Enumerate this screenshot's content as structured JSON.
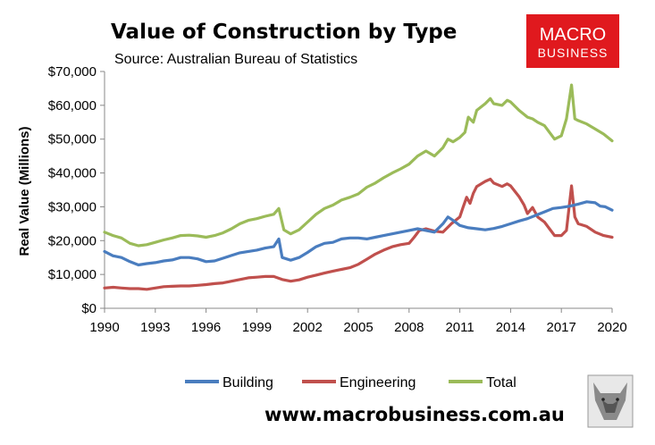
{
  "brand": {
    "line1": "MACRO",
    "line2": "BUSINESS",
    "bg_color": "#e0191e",
    "url": "www.macrobusiness.com.au"
  },
  "chart_data": {
    "type": "line",
    "title": "Value of Construction by Type",
    "subtitle": "Source: Australian Bureau of Statistics",
    "xlabel": "",
    "ylabel": "Real Value (Millions)",
    "xlim": [
      1990,
      2020
    ],
    "ylim": [
      0,
      70000
    ],
    "x_ticks": [
      "1990",
      "1993",
      "1996",
      "1999",
      "2002",
      "2005",
      "2008",
      "2011",
      "2014",
      "2017",
      "2020"
    ],
    "y_ticks": [
      "$0",
      "$10,000",
      "$20,000",
      "$30,000",
      "$40,000",
      "$50,000",
      "$60,000",
      "$70,000"
    ],
    "legend_position": "bottom",
    "series": [
      {
        "name": "Building",
        "color": "#4a7dbf",
        "points": [
          [
            1990,
            16800
          ],
          [
            1990.5,
            15500
          ],
          [
            1991,
            15000
          ],
          [
            1991.5,
            13800
          ],
          [
            1992,
            12800
          ],
          [
            1992.5,
            13200
          ],
          [
            1993,
            13500
          ],
          [
            1993.5,
            14000
          ],
          [
            1994,
            14300
          ],
          [
            1994.5,
            15000
          ],
          [
            1995,
            15000
          ],
          [
            1995.5,
            14600
          ],
          [
            1996,
            13800
          ],
          [
            1996.5,
            14000
          ],
          [
            1997,
            14800
          ],
          [
            1997.5,
            15600
          ],
          [
            1998,
            16400
          ],
          [
            1998.5,
            16800
          ],
          [
            1999,
            17200
          ],
          [
            1999.5,
            17800
          ],
          [
            2000,
            18200
          ],
          [
            2000.3,
            20500
          ],
          [
            2000.5,
            15000
          ],
          [
            2001,
            14200
          ],
          [
            2001.5,
            15000
          ],
          [
            2002,
            16500
          ],
          [
            2002.5,
            18200
          ],
          [
            2003,
            19200
          ],
          [
            2003.5,
            19500
          ],
          [
            2004,
            20500
          ],
          [
            2004.5,
            20800
          ],
          [
            2005,
            20800
          ],
          [
            2005.5,
            20500
          ],
          [
            2006,
            21000
          ],
          [
            2006.5,
            21500
          ],
          [
            2007,
            22000
          ],
          [
            2007.5,
            22500
          ],
          [
            2008,
            23000
          ],
          [
            2008.5,
            23500
          ],
          [
            2009,
            23000
          ],
          [
            2009.5,
            22500
          ],
          [
            2010,
            25000
          ],
          [
            2010.3,
            27000
          ],
          [
            2010.6,
            26000
          ],
          [
            2011,
            24500
          ],
          [
            2011.5,
            23800
          ],
          [
            2012,
            23500
          ],
          [
            2012.5,
            23200
          ],
          [
            2013,
            23600
          ],
          [
            2013.5,
            24200
          ],
          [
            2014,
            25000
          ],
          [
            2014.5,
            25800
          ],
          [
            2015,
            26500
          ],
          [
            2015.5,
            27500
          ],
          [
            2016,
            28500
          ],
          [
            2016.5,
            29500
          ],
          [
            2017,
            29800
          ],
          [
            2017.5,
            30200
          ],
          [
            2018,
            30800
          ],
          [
            2018.5,
            31500
          ],
          [
            2019,
            31200
          ],
          [
            2019.3,
            30200
          ],
          [
            2019.6,
            30000
          ],
          [
            2020,
            29000
          ]
        ]
      },
      {
        "name": "Engineering",
        "color": "#c0504d",
        "points": [
          [
            1990,
            6000
          ],
          [
            1990.5,
            6200
          ],
          [
            1991,
            6000
          ],
          [
            1991.5,
            5800
          ],
          [
            1992,
            5800
          ],
          [
            1992.5,
            5600
          ],
          [
            1993,
            6000
          ],
          [
            1993.5,
            6400
          ],
          [
            1994,
            6500
          ],
          [
            1994.5,
            6600
          ],
          [
            1995,
            6600
          ],
          [
            1995.5,
            6800
          ],
          [
            1996,
            7000
          ],
          [
            1996.5,
            7300
          ],
          [
            1997,
            7500
          ],
          [
            1997.5,
            8000
          ],
          [
            1998,
            8500
          ],
          [
            1998.5,
            9000
          ],
          [
            1999,
            9200
          ],
          [
            1999.5,
            9400
          ],
          [
            2000,
            9400
          ],
          [
            2000.5,
            8500
          ],
          [
            2001,
            8000
          ],
          [
            2001.5,
            8400
          ],
          [
            2002,
            9200
          ],
          [
            2002.5,
            9800
          ],
          [
            2003,
            10400
          ],
          [
            2003.5,
            11000
          ],
          [
            2004,
            11500
          ],
          [
            2004.5,
            12000
          ],
          [
            2005,
            13000
          ],
          [
            2005.5,
            14500
          ],
          [
            2006,
            16000
          ],
          [
            2006.5,
            17200
          ],
          [
            2007,
            18200
          ],
          [
            2007.5,
            18800
          ],
          [
            2008,
            19200
          ],
          [
            2008.3,
            21000
          ],
          [
            2008.6,
            23000
          ],
          [
            2009,
            23500
          ],
          [
            2009.5,
            22800
          ],
          [
            2010,
            22500
          ],
          [
            2010.5,
            25000
          ],
          [
            2011,
            27000
          ],
          [
            2011.2,
            30000
          ],
          [
            2011.4,
            32800
          ],
          [
            2011.6,
            31000
          ],
          [
            2011.8,
            34000
          ],
          [
            2012,
            36000
          ],
          [
            2012.5,
            37500
          ],
          [
            2012.8,
            38200
          ],
          [
            2013,
            37000
          ],
          [
            2013.5,
            36000
          ],
          [
            2013.8,
            36800
          ],
          [
            2014,
            36200
          ],
          [
            2014.5,
            33000
          ],
          [
            2014.8,
            30500
          ],
          [
            2015,
            28000
          ],
          [
            2015.3,
            29800
          ],
          [
            2015.6,
            27000
          ],
          [
            2016,
            25500
          ],
          [
            2016.3,
            23500
          ],
          [
            2016.6,
            21500
          ],
          [
            2017,
            21500
          ],
          [
            2017.3,
            23000
          ],
          [
            2017.6,
            36200
          ],
          [
            2017.8,
            27000
          ],
          [
            2018,
            25000
          ],
          [
            2018.5,
            24200
          ],
          [
            2019,
            22500
          ],
          [
            2019.5,
            21500
          ],
          [
            2020,
            21000
          ]
        ]
      },
      {
        "name": "Total",
        "color": "#9bbb59",
        "points": [
          [
            1990,
            22500
          ],
          [
            1990.5,
            21500
          ],
          [
            1991,
            20800
          ],
          [
            1991.5,
            19200
          ],
          [
            1992,
            18500
          ],
          [
            1992.5,
            18800
          ],
          [
            1993,
            19500
          ],
          [
            1993.5,
            20200
          ],
          [
            1994,
            20800
          ],
          [
            1994.5,
            21500
          ],
          [
            1995,
            21600
          ],
          [
            1995.5,
            21400
          ],
          [
            1996,
            21000
          ],
          [
            1996.5,
            21500
          ],
          [
            1997,
            22300
          ],
          [
            1997.5,
            23500
          ],
          [
            1998,
            25000
          ],
          [
            1998.5,
            26000
          ],
          [
            1999,
            26500
          ],
          [
            1999.5,
            27200
          ],
          [
            2000,
            27800
          ],
          [
            2000.3,
            29500
          ],
          [
            2000.6,
            23200
          ],
          [
            2001,
            22000
          ],
          [
            2001.5,
            23200
          ],
          [
            2002,
            25500
          ],
          [
            2002.5,
            27800
          ],
          [
            2003,
            29500
          ],
          [
            2003.5,
            30500
          ],
          [
            2004,
            32000
          ],
          [
            2004.5,
            32800
          ],
          [
            2005,
            33800
          ],
          [
            2005.5,
            35800
          ],
          [
            2006,
            37000
          ],
          [
            2006.5,
            38600
          ],
          [
            2007,
            40000
          ],
          [
            2007.5,
            41200
          ],
          [
            2008,
            42600
          ],
          [
            2008.5,
            45000
          ],
          [
            2009,
            46500
          ],
          [
            2009.5,
            45000
          ],
          [
            2010,
            47500
          ],
          [
            2010.3,
            50000
          ],
          [
            2010.6,
            49200
          ],
          [
            2011,
            50500
          ],
          [
            2011.3,
            52000
          ],
          [
            2011.5,
            56500
          ],
          [
            2011.8,
            55000
          ],
          [
            2012,
            58500
          ],
          [
            2012.5,
            60500
          ],
          [
            2012.8,
            62000
          ],
          [
            2013,
            60500
          ],
          [
            2013.5,
            60000
          ],
          [
            2013.8,
            61500
          ],
          [
            2014,
            61000
          ],
          [
            2014.5,
            58500
          ],
          [
            2015,
            56500
          ],
          [
            2015.3,
            56000
          ],
          [
            2015.6,
            55000
          ],
          [
            2016,
            54000
          ],
          [
            2016.3,
            52000
          ],
          [
            2016.6,
            50000
          ],
          [
            2017,
            51000
          ],
          [
            2017.3,
            56000
          ],
          [
            2017.6,
            66000
          ],
          [
            2017.8,
            56000
          ],
          [
            2018,
            55500
          ],
          [
            2018.5,
            54500
          ],
          [
            2019,
            53000
          ],
          [
            2019.5,
            51500
          ],
          [
            2020,
            49500
          ]
        ]
      }
    ]
  }
}
